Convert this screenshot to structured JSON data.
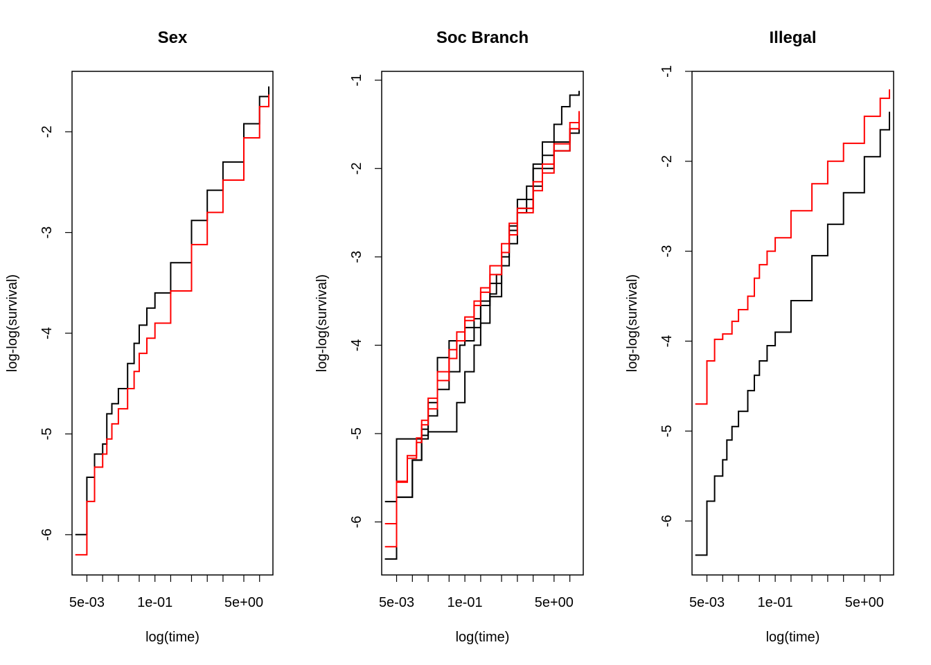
{
  "chart_data": [
    {
      "type": "line",
      "title": "Sex",
      "xlabel": "log(time)",
      "ylabel": "log-log(survival)",
      "x_scale": "log",
      "xlim": [
        0.0026,
        18
      ],
      "ylim": [
        -6.4,
        -1.4
      ],
      "x_ticks": [
        0.005,
        0.01,
        0.02,
        0.05,
        0.1,
        0.2,
        0.5,
        1,
        2,
        5,
        10
      ],
      "x_tick_labels": [
        {
          "value": 0.005,
          "label": "5e-03"
        },
        {
          "value": 0.1,
          "label": "1e-01"
        },
        {
          "value": 5,
          "label": "5e+00"
        }
      ],
      "y_ticks": [
        -6,
        -5,
        -4,
        -3,
        -2
      ],
      "y_tick_labels": [
        "-6",
        "-5",
        "-4",
        "-3",
        "-2"
      ],
      "series": [
        {
          "color": "#000000",
          "step": true,
          "x": [
            0.003,
            0.005,
            0.007,
            0.01,
            0.012,
            0.015,
            0.02,
            0.03,
            0.04,
            0.05,
            0.07,
            0.1,
            0.2,
            0.5,
            1,
            2,
            5,
            10,
            15
          ],
          "y": [
            -6.0,
            -5.43,
            -5.2,
            -5.1,
            -4.8,
            -4.7,
            -4.55,
            -4.3,
            -4.1,
            -3.92,
            -3.75,
            -3.6,
            -3.3,
            -2.88,
            -2.58,
            -2.3,
            -1.92,
            -1.65,
            -1.55
          ]
        },
        {
          "color": "#ff0000",
          "step": true,
          "x": [
            0.003,
            0.005,
            0.007,
            0.01,
            0.012,
            0.015,
            0.02,
            0.03,
            0.04,
            0.05,
            0.07,
            0.1,
            0.2,
            0.5,
            1,
            2,
            5,
            10,
            15
          ],
          "y": [
            -6.2,
            -5.67,
            -5.33,
            -5.2,
            -5.05,
            -4.9,
            -4.75,
            -4.55,
            -4.38,
            -4.2,
            -4.05,
            -3.9,
            -3.58,
            -3.12,
            -2.8,
            -2.48,
            -2.06,
            -1.75,
            -1.63
          ]
        }
      ]
    },
    {
      "type": "line",
      "title": "Soc Branch",
      "xlabel": "log(time)",
      "ylabel": "log-log(survival)",
      "x_scale": "log",
      "xlim": [
        0.0026,
        18
      ],
      "ylim": [
        -6.6,
        -0.9
      ],
      "x_ticks": [
        0.005,
        0.01,
        0.02,
        0.05,
        0.1,
        0.2,
        0.5,
        1,
        2,
        5,
        10
      ],
      "x_tick_labels": [
        {
          "value": 0.005,
          "label": "5e-03"
        },
        {
          "value": 0.1,
          "label": "1e-01"
        },
        {
          "value": 5,
          "label": "5e+00"
        }
      ],
      "y_ticks": [
        -6,
        -5,
        -4,
        -3,
        -2,
        -1
      ],
      "y_tick_labels": [
        "-6",
        "-5",
        "-4",
        "-3",
        "-2",
        "-1"
      ],
      "series": [
        {
          "color": "#000000",
          "step": true,
          "x": [
            0.003,
            0.005,
            0.02,
            0.07,
            0.1,
            0.15,
            0.2,
            0.3,
            0.5,
            0.7,
            1,
            1.5,
            2,
            3,
            5,
            7,
            10,
            15
          ],
          "y": [
            -5.77,
            -5.06,
            -4.98,
            -4.65,
            -4.3,
            -4.0,
            -3.75,
            -3.45,
            -3.1,
            -2.85,
            -2.5,
            -2.2,
            -1.95,
            -1.7,
            -1.5,
            -1.3,
            -1.17,
            -1.12
          ]
        },
        {
          "color": "#000000",
          "step": true,
          "x": [
            0.003,
            0.005,
            0.01,
            0.015,
            0.02,
            0.03,
            0.05,
            0.08,
            0.1,
            0.2,
            0.3,
            0.5,
            0.7,
            1,
            2,
            3,
            5,
            10,
            15
          ],
          "y": [
            -6.42,
            -5.72,
            -5.3,
            -4.95,
            -4.65,
            -4.5,
            -4.3,
            -4.0,
            -3.8,
            -3.5,
            -3.3,
            -3.0,
            -2.7,
            -2.45,
            -2.2,
            -2.0,
            -1.8,
            -1.6,
            -1.45
          ]
        },
        {
          "color": "#000000",
          "step": true,
          "x": [
            0.003,
            0.005,
            0.01,
            0.015,
            0.02,
            0.03,
            0.05,
            0.07,
            0.1,
            0.15,
            0.2,
            0.3,
            0.4,
            0.5,
            0.7,
            1,
            2,
            3,
            5,
            10,
            15
          ],
          "y": [
            -6.42,
            -5.72,
            -5.3,
            -5.02,
            -4.8,
            -4.14,
            -3.95,
            -3.95,
            -3.95,
            -3.7,
            -3.55,
            -3.42,
            -3.2,
            -2.95,
            -2.65,
            -2.35,
            -2.0,
            -1.85,
            -1.7,
            -1.55,
            -1.48
          ]
        },
        {
          "color": "#ff0000",
          "step": true,
          "x": [
            0.003,
            0.005,
            0.008,
            0.012,
            0.015,
            0.02,
            0.03,
            0.05,
            0.07,
            0.1,
            0.15,
            0.2,
            0.3,
            0.5,
            0.7,
            1,
            2,
            3,
            5,
            10,
            15
          ],
          "y": [
            -6.28,
            -5.55,
            -5.25,
            -5.1,
            -4.9,
            -4.72,
            -4.4,
            -4.15,
            -3.95,
            -3.72,
            -3.55,
            -3.4,
            -3.2,
            -2.95,
            -2.75,
            -2.5,
            -2.15,
            -1.95,
            -1.72,
            -1.48,
            -1.35
          ]
        },
        {
          "color": "#ff0000",
          "step": true,
          "x": [
            0.003,
            0.005,
            0.008,
            0.012,
            0.015,
            0.02,
            0.03,
            0.05,
            0.07,
            0.1,
            0.15,
            0.2,
            0.3,
            0.5,
            0.7,
            1,
            2,
            3,
            5,
            10,
            15
          ],
          "y": [
            -6.02,
            -5.54,
            -5.28,
            -5.05,
            -4.85,
            -4.6,
            -4.3,
            -4.05,
            -3.85,
            -3.68,
            -3.5,
            -3.35,
            -3.1,
            -2.85,
            -2.62,
            -2.45,
            -2.25,
            -2.05,
            -1.8,
            -1.55,
            -1.47
          ]
        }
      ]
    },
    {
      "type": "line",
      "title": "Illegal",
      "xlabel": "log(time)",
      "ylabel": "log-log(survival)",
      "x_scale": "log",
      "xlim": [
        0.0026,
        18
      ],
      "ylim": [
        -6.6,
        -1.0
      ],
      "x_ticks": [
        0.005,
        0.01,
        0.02,
        0.05,
        0.1,
        0.2,
        0.5,
        1,
        2,
        5,
        10
      ],
      "x_tick_labels": [
        {
          "value": 0.005,
          "label": "5e-03"
        },
        {
          "value": 0.1,
          "label": "1e-01"
        },
        {
          "value": 5,
          "label": "5e+00"
        }
      ],
      "y_ticks": [
        -6,
        -5,
        -4,
        -3,
        -2,
        -1
      ],
      "y_tick_labels": [
        "-6",
        "-5",
        "-4",
        "-3",
        "-2",
        "-1"
      ],
      "series": [
        {
          "color": "#000000",
          "step": true,
          "x": [
            0.003,
            0.005,
            0.007,
            0.01,
            0.012,
            0.015,
            0.02,
            0.03,
            0.04,
            0.05,
            0.07,
            0.1,
            0.2,
            0.5,
            1,
            2,
            5,
            10,
            15
          ],
          "y": [
            -6.38,
            -5.78,
            -5.5,
            -5.32,
            -5.1,
            -4.95,
            -4.78,
            -4.55,
            -4.38,
            -4.22,
            -4.05,
            -3.9,
            -3.55,
            -3.05,
            -2.7,
            -2.35,
            -1.95,
            -1.65,
            -1.45
          ]
        },
        {
          "color": "#ff0000",
          "step": true,
          "x": [
            0.003,
            0.005,
            0.007,
            0.01,
            0.015,
            0.02,
            0.03,
            0.04,
            0.05,
            0.07,
            0.1,
            0.2,
            0.5,
            1,
            2,
            5,
            10,
            15
          ],
          "y": [
            -4.7,
            -4.22,
            -3.98,
            -3.92,
            -3.78,
            -3.65,
            -3.5,
            -3.3,
            -3.15,
            -3.0,
            -2.85,
            -2.55,
            -2.25,
            -2.0,
            -1.8,
            -1.5,
            -1.3,
            -1.2
          ]
        }
      ]
    }
  ]
}
